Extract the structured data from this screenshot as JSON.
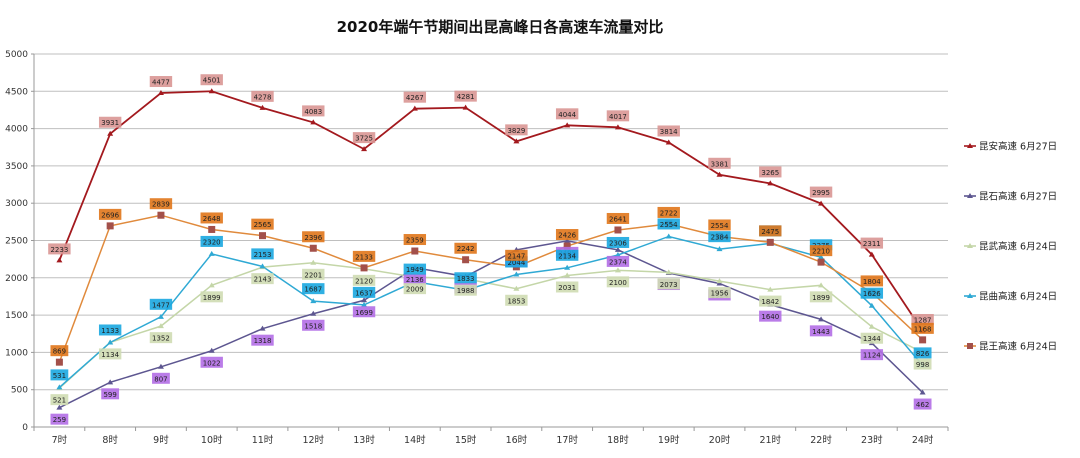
{
  "chart_data": {
    "type": "line",
    "title": "2020年端午节期间出昆高峰日各高速车流量对比",
    "xlabel": "",
    "ylabel": "",
    "ylim": [
      0,
      5000
    ],
    "yticks": [
      0,
      500,
      1000,
      1500,
      2000,
      2500,
      3000,
      3500,
      4000,
      4500,
      5000
    ],
    "grid": true,
    "legend_position": "right",
    "categories": [
      "7时",
      "8时",
      "9时",
      "10时",
      "11时",
      "12时",
      "13时",
      "14时",
      "15时",
      "16时",
      "17时",
      "18时",
      "19时",
      "20时",
      "21时",
      "22时",
      "23时",
      "24时"
    ],
    "series": [
      {
        "name": "昆安高速 6月27日",
        "color": "#a3191e",
        "label_bg": "#d99694",
        "marker": "triangle",
        "values": [
          2233,
          3931,
          4477,
          4501,
          4278,
          4083,
          3725,
          4267,
          4281,
          3829,
          4044,
          4017,
          3814,
          3381,
          3265,
          2995,
          2311,
          1287
        ]
      },
      {
        "name": "昆石高速 6月27日",
        "color": "#5d5690",
        "label_bg": "#b36ee6",
        "marker": "triangle",
        "values": [
          259,
          599,
          807,
          1022,
          1318,
          1518,
          1699,
          2136,
          2017,
          2374,
          2495,
          2374,
          2064,
          1924,
          1640,
          1443,
          1124,
          462
        ]
      },
      {
        "name": "昆武高速 6月24日",
        "color": "#c4d6a8",
        "label_bg": "#cfdcb2",
        "marker": "triangle",
        "values": [
          521,
          1134,
          1352,
          1899,
          2143,
          2201,
          2120,
          2009,
          1988,
          1853,
          2031,
          2100,
          2073,
          1956,
          1842,
          1899,
          1344,
          998
        ]
      },
      {
        "name": "昆曲高速 6月24日",
        "color": "#2fa9d4",
        "label_bg": "#1aa7e0",
        "marker": "triangle",
        "values": [
          531,
          1133,
          1477,
          2320,
          2153,
          1687,
          1637,
          1949,
          1833,
          2044,
          2134,
          2306,
          2554,
          2384,
          2461,
          2275,
          1626,
          826
        ]
      },
      {
        "name": "昆王高速 6月24日",
        "color": "#e08a3c",
        "label_bg": "#e0761a",
        "marker": "square",
        "marker_color": "#a3504a",
        "values": [
          869,
          2696,
          2839,
          2648,
          2565,
          2396,
          2133,
          2359,
          2242,
          2147,
          2426,
          2641,
          2722,
          2554,
          2475,
          2210,
          1804,
          1168
        ]
      }
    ]
  }
}
